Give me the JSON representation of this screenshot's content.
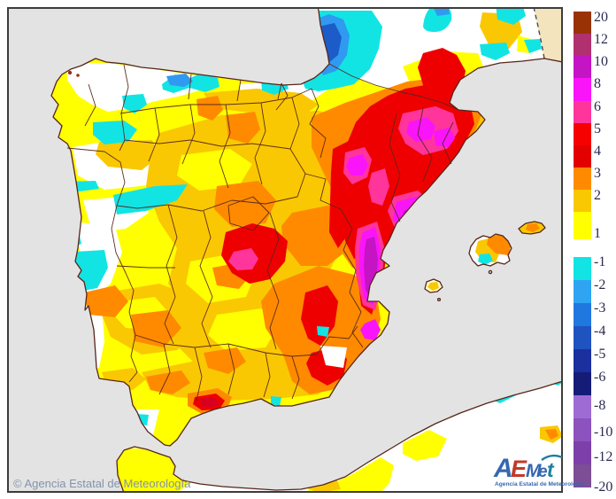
{
  "map": {
    "copyright": "© Agencia Estatal de Meteorología",
    "copyright_color": "#8293AB",
    "sea_color": "#E3E3E3",
    "no_data_land_color": "#F3E4BE",
    "land_base_color": "#FFFFFF",
    "boundary_color": "#57251A",
    "frame_color": "#3C3C3C"
  },
  "anomaly_palette": {
    "yellow": "#FFFF00",
    "gold": "#F9C802",
    "orange": "#FF8A00",
    "red": "#EF0000",
    "crimson": "#D80020",
    "pink": "#FF359B",
    "magenta": "#FA14FA",
    "purple_magenta": "#C414C4",
    "cyan": "#12E4E4",
    "blue": "#2F9AF0",
    "dark_blue": "#1C5CC8"
  },
  "legend": {
    "label_color": "#2A2A52",
    "positive": [
      {
        "label": "20",
        "color": "#993305"
      },
      {
        "label": "12",
        "color": "#B13070"
      },
      {
        "label": "10",
        "color": "#C414C4"
      },
      {
        "label": "8",
        "color": "#FA14FA"
      },
      {
        "label": "6",
        "color": "#FF359B"
      },
      {
        "label": "5",
        "color": "#F60000"
      },
      {
        "label": "4",
        "color": "#E30000"
      },
      {
        "label": "3",
        "color": "#FF8A00"
      },
      {
        "label": "2",
        "color": "#F9C802"
      },
      {
        "label": "1",
        "color": "#FFFF00"
      }
    ],
    "negative": [
      {
        "label": "-1",
        "color": "#12E4E4"
      },
      {
        "label": "-2",
        "color": "#2FA4F2"
      },
      {
        "label": "-3",
        "color": "#1F78E0"
      },
      {
        "label": "-4",
        "color": "#1F53C0"
      },
      {
        "label": "-5",
        "color": "#1B2F9E"
      },
      {
        "label": "-6",
        "color": "#141C78"
      },
      {
        "label": "-8",
        "color": "#9E6BD4"
      },
      {
        "label": "-10",
        "color": "#8C52BE"
      },
      {
        "label": "-12",
        "color": "#7D40A8"
      },
      {
        "label": "-20",
        "color": "#7C4E96"
      }
    ]
  },
  "logo": {
    "letters": [
      {
        "ch": "A",
        "color": "#3568B0"
      },
      {
        "ch": "E",
        "color": "#C13A2A"
      },
      {
        "ch": "M",
        "color": "#3568B0"
      },
      {
        "ch": "e",
        "color": "#3568B0"
      },
      {
        "ch": "t",
        "color": "#1D7F9E"
      }
    ],
    "subtext": "Agencia Estatal de Meteorología",
    "subtext_color": "#3568B0"
  }
}
